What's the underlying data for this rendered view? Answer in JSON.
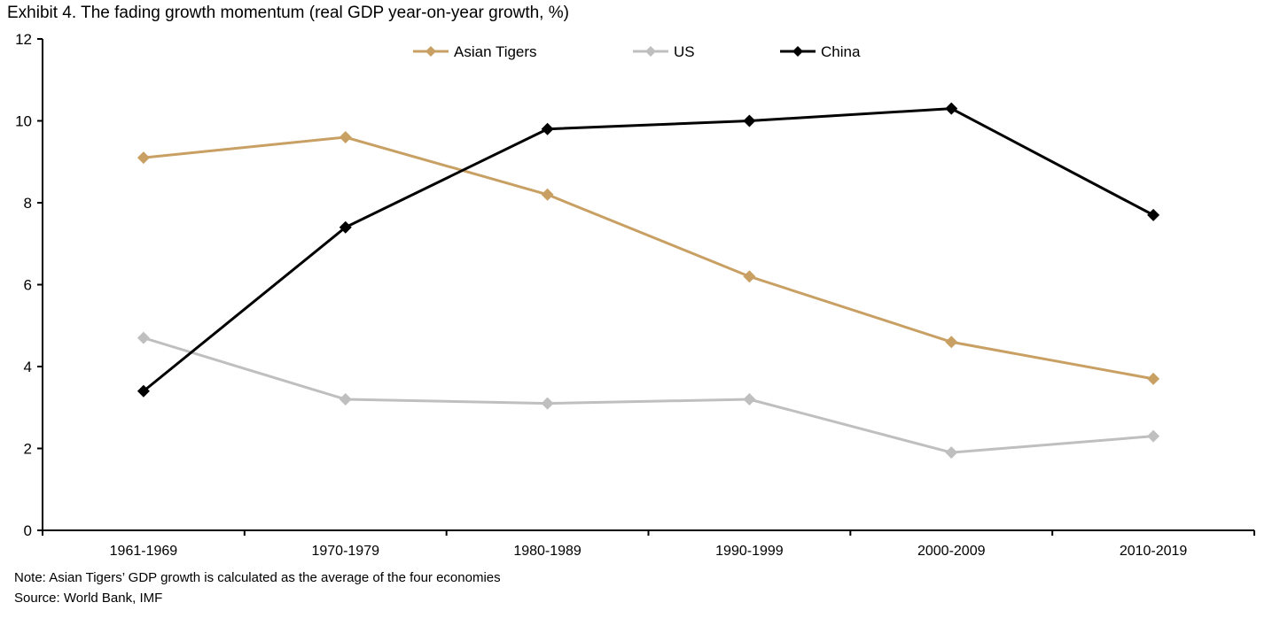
{
  "chart_data": {
    "type": "line",
    "title": "Exhibit 4. The fading growth momentum (real GDP year-on-year growth, %)",
    "xlabel": "",
    "ylabel": "",
    "categories": [
      "1961-1969",
      "1970-1979",
      "1980-1989",
      "1990-1999",
      "2000-2009",
      "2010-2019"
    ],
    "ylim": [
      0,
      12
    ],
    "yticks": [
      0,
      2,
      4,
      6,
      8,
      10,
      12
    ],
    "grid": false,
    "legend": "top-center",
    "series": [
      {
        "name": "Asian Tigers",
        "color": "#c9a064",
        "marker": "diamond",
        "values": [
          9.1,
          9.6,
          8.2,
          6.2,
          4.6,
          3.7
        ]
      },
      {
        "name": "US",
        "color": "#bfbfbf",
        "marker": "diamond",
        "values": [
          4.7,
          3.2,
          3.1,
          3.2,
          1.9,
          2.3
        ]
      },
      {
        "name": "China",
        "color": "#000000",
        "marker": "diamond",
        "values": [
          3.4,
          7.4,
          9.8,
          10.0,
          10.3,
          7.7
        ]
      }
    ],
    "note": "Note: Asian Tigers’ GDP growth is calculated as the average of the four economies",
    "source": "Source: World Bank, IMF"
  }
}
